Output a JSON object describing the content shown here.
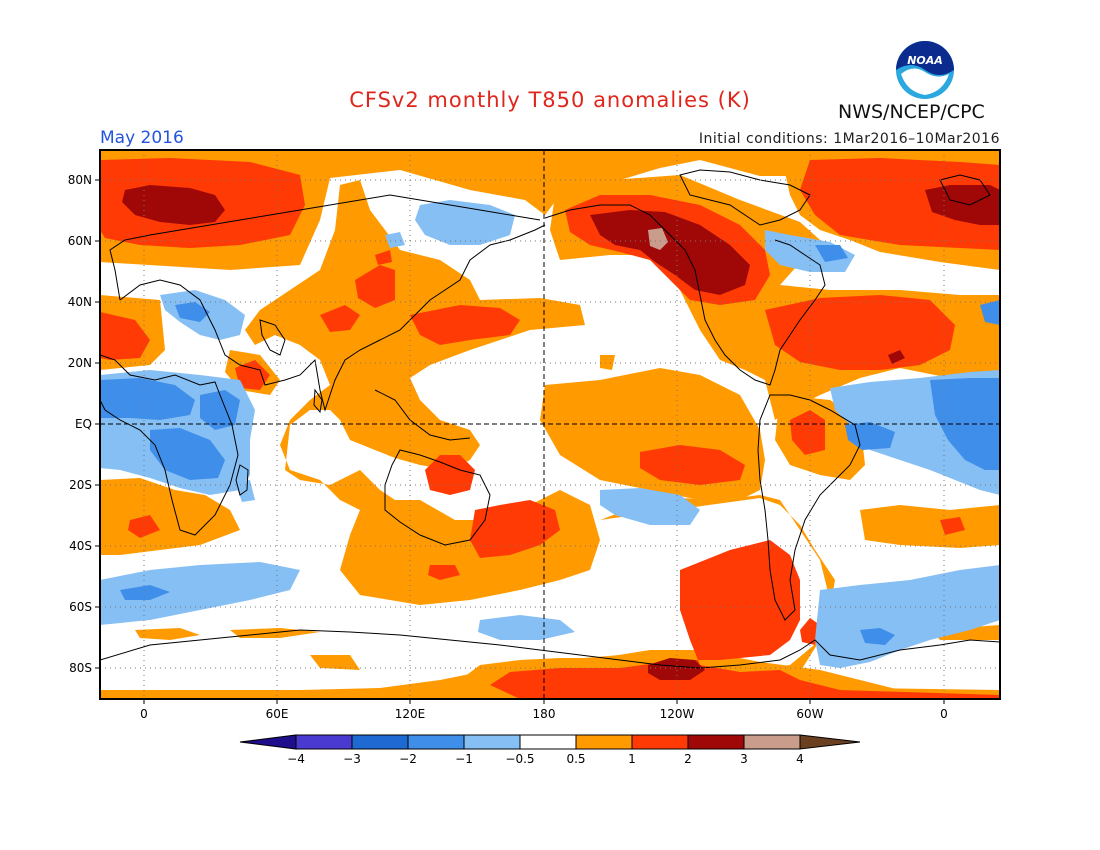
{
  "header": {
    "title": "CFSv2 monthly T850 anomalies (K)",
    "month": "May 2016",
    "initial_conditions": "Initial conditions: 1Mar2016–10Mar2016",
    "org": "NWS/NCEP/CPC",
    "logo_text": "NOAA"
  },
  "map": {
    "lat_labels": [
      "80N",
      "60N",
      "40N",
      "20N",
      "EQ",
      "20S",
      "40S",
      "60S",
      "80S"
    ],
    "lon_labels": [
      "0",
      "60E",
      "120E",
      "180",
      "120W",
      "60W",
      "0"
    ]
  },
  "legend": {
    "labels": [
      "−4",
      "−3",
      "−2",
      "−1",
      "−0.5",
      "0.5",
      "1",
      "2",
      "3",
      "4"
    ],
    "colors": [
      "#1e0e8c",
      "#4a3ad0",
      "#1f6ad2",
      "#3f8eea",
      "#86bff4",
      "#ffffff",
      "#ff9a00",
      "#ff3a05",
      "#a00808",
      "#c99c8c",
      "#6b4020"
    ]
  },
  "colors": {
    "title": "#e0261c",
    "month": "#2255dd",
    "warm1": "#ff9a00",
    "warm2": "#ff3a05",
    "warm3": "#a00808",
    "warm4": "#c99c8c",
    "cool1": "#86bff4",
    "cool2": "#3f8eea"
  }
}
